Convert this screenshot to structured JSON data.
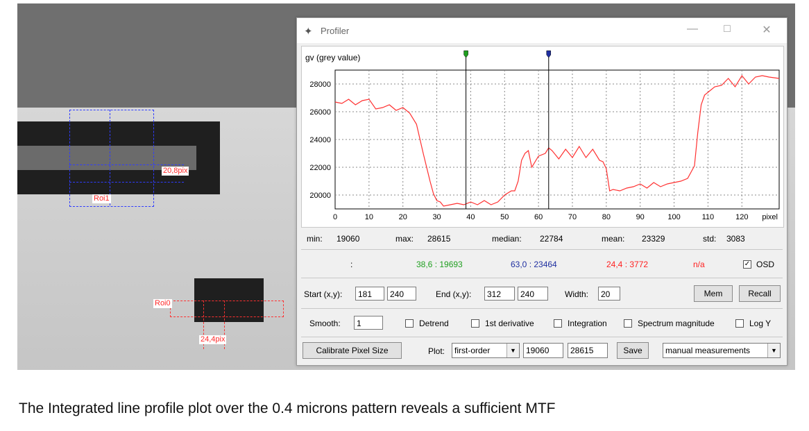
{
  "window": {
    "title": "Profiler"
  },
  "plot": {
    "ylabel": "gv (grey value)",
    "xunit": "pixel",
    "yticks": [
      "28000",
      "26000",
      "24000",
      "22000",
      "20000"
    ],
    "xticks": [
      "0",
      "10",
      "20",
      "30",
      "40",
      "50",
      "60",
      "70",
      "80",
      "90",
      "100",
      "110",
      "120"
    ]
  },
  "chart_data": {
    "type": "line",
    "ylabel": "gv (grey value)",
    "xlabel": "pixel",
    "xlim": [
      0,
      131
    ],
    "ylim": [
      19000,
      29000
    ],
    "grid": true,
    "series": [
      {
        "color": "#ff3030",
        "x": [
          0,
          2,
          4,
          6,
          8,
          10,
          12,
          14,
          16,
          18,
          20,
          22,
          24,
          26,
          28,
          29,
          30,
          31,
          32,
          34,
          36,
          38,
          40,
          42,
          44,
          46,
          48,
          50,
          52,
          53,
          54,
          55,
          56,
          57,
          58,
          60,
          62,
          63,
          64,
          66,
          68,
          70,
          72,
          74,
          76,
          78,
          79,
          80,
          81,
          82,
          84,
          86,
          88,
          90,
          92,
          94,
          96,
          98,
          100,
          102,
          104,
          106,
          107,
          108,
          109,
          110,
          112,
          114,
          116,
          118,
          120,
          122,
          124,
          126,
          128,
          131
        ],
        "y": [
          26700,
          26600,
          26900,
          26500,
          26800,
          26900,
          26200,
          26300,
          26500,
          26100,
          26300,
          25900,
          25100,
          23000,
          21000,
          20100,
          19600,
          19500,
          19200,
          19300,
          19400,
          19300,
          19500,
          19300,
          19600,
          19300,
          19500,
          20000,
          20300,
          20300,
          21000,
          22500,
          23000,
          23200,
          22000,
          22800,
          23000,
          23400,
          23200,
          22600,
          23300,
          22700,
          23500,
          22700,
          23300,
          22500,
          22400,
          21900,
          20300,
          20400,
          20300,
          20500,
          20600,
          20800,
          20500,
          20900,
          20600,
          20800,
          20900,
          21000,
          21200,
          22100,
          24500,
          26500,
          27200,
          27400,
          27800,
          27900,
          28400,
          27800,
          28600,
          28000,
          28500,
          28600,
          28500,
          28400
        ]
      }
    ],
    "cursors": [
      {
        "x": 38.6,
        "y": 19693,
        "color": "#1e9e1e"
      },
      {
        "x": 63.0,
        "y": 23464,
        "color": "#1f2fa0"
      }
    ]
  },
  "stats": {
    "min_label": "min:",
    "min": "19060",
    "max_label": "max:",
    "max": "28615",
    "median_label": "median:",
    "median": "22784",
    "mean_label": "mean:",
    "mean": "23329",
    "std_label": "std:",
    "std": "3083"
  },
  "osd_row": {
    "sep": ":",
    "green": "38,6 : 19693",
    "blue": "63,0 : 23464",
    "red": "24,4 : 3772",
    "na": "n/a",
    "osd_label": "OSD",
    "osd_checked": true
  },
  "controls": {
    "start_label": "Start (x,y):",
    "start_x": "181",
    "start_y": "240",
    "end_label": "End (x,y):",
    "end_x": "312",
    "end_y": "240",
    "width_label": "Width:",
    "width": "20",
    "mem": "Mem",
    "recall": "Recall",
    "smooth_label": "Smooth:",
    "smooth": "1",
    "detrend": "Detrend",
    "first_derivative": "1st derivative",
    "integration": "Integration",
    "spectrum": "Spectrum magnitude",
    "logy": "Log Y",
    "calibrate": "Calibrate Pixel Size",
    "plot_label": "Plot:",
    "plot_value": "first-order",
    "min_range": "19060",
    "max_range": "28615",
    "save": "Save",
    "mode": "manual measurements"
  },
  "image_overlay": {
    "roi1": "Roi1",
    "roi1_measure": "20,8pix",
    "roi0": "Roi0",
    "roi0_measure": "24,4pix"
  },
  "caption": "The Integrated line profile plot over the 0.4 microns pattern reveals a sufficient MTF"
}
